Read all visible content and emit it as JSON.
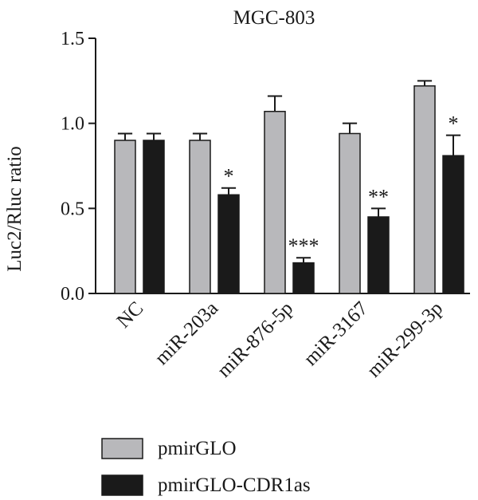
{
  "chart_data": {
    "type": "bar",
    "title": "MGC-803",
    "xlabel": "",
    "ylabel": "Luc2/Rluc ratio",
    "ylim": [
      0,
      1.5
    ],
    "yticks": [
      "0.0",
      "0.5",
      "1.0",
      "1.5"
    ],
    "categories": [
      "NC",
      "miR-203a",
      "miR-876-5p",
      "miR-3167",
      "miR-299-3p"
    ],
    "series": [
      {
        "name": "pmirGLO",
        "color": "#b8b8bb",
        "values": [
          0.9,
          0.9,
          1.07,
          0.94,
          1.22
        ],
        "errors": [
          0.04,
          0.04,
          0.09,
          0.06,
          0.03
        ]
      },
      {
        "name": "pmirGLO-CDR1as",
        "color": "#1a1a1a",
        "values": [
          0.9,
          0.58,
          0.18,
          0.45,
          0.81
        ],
        "errors": [
          0.04,
          0.04,
          0.03,
          0.05,
          0.12
        ]
      }
    ],
    "significance": [
      "",
      "*",
      "***",
      "**",
      "*"
    ],
    "legend_position": "bottom-left",
    "grid": false
  }
}
